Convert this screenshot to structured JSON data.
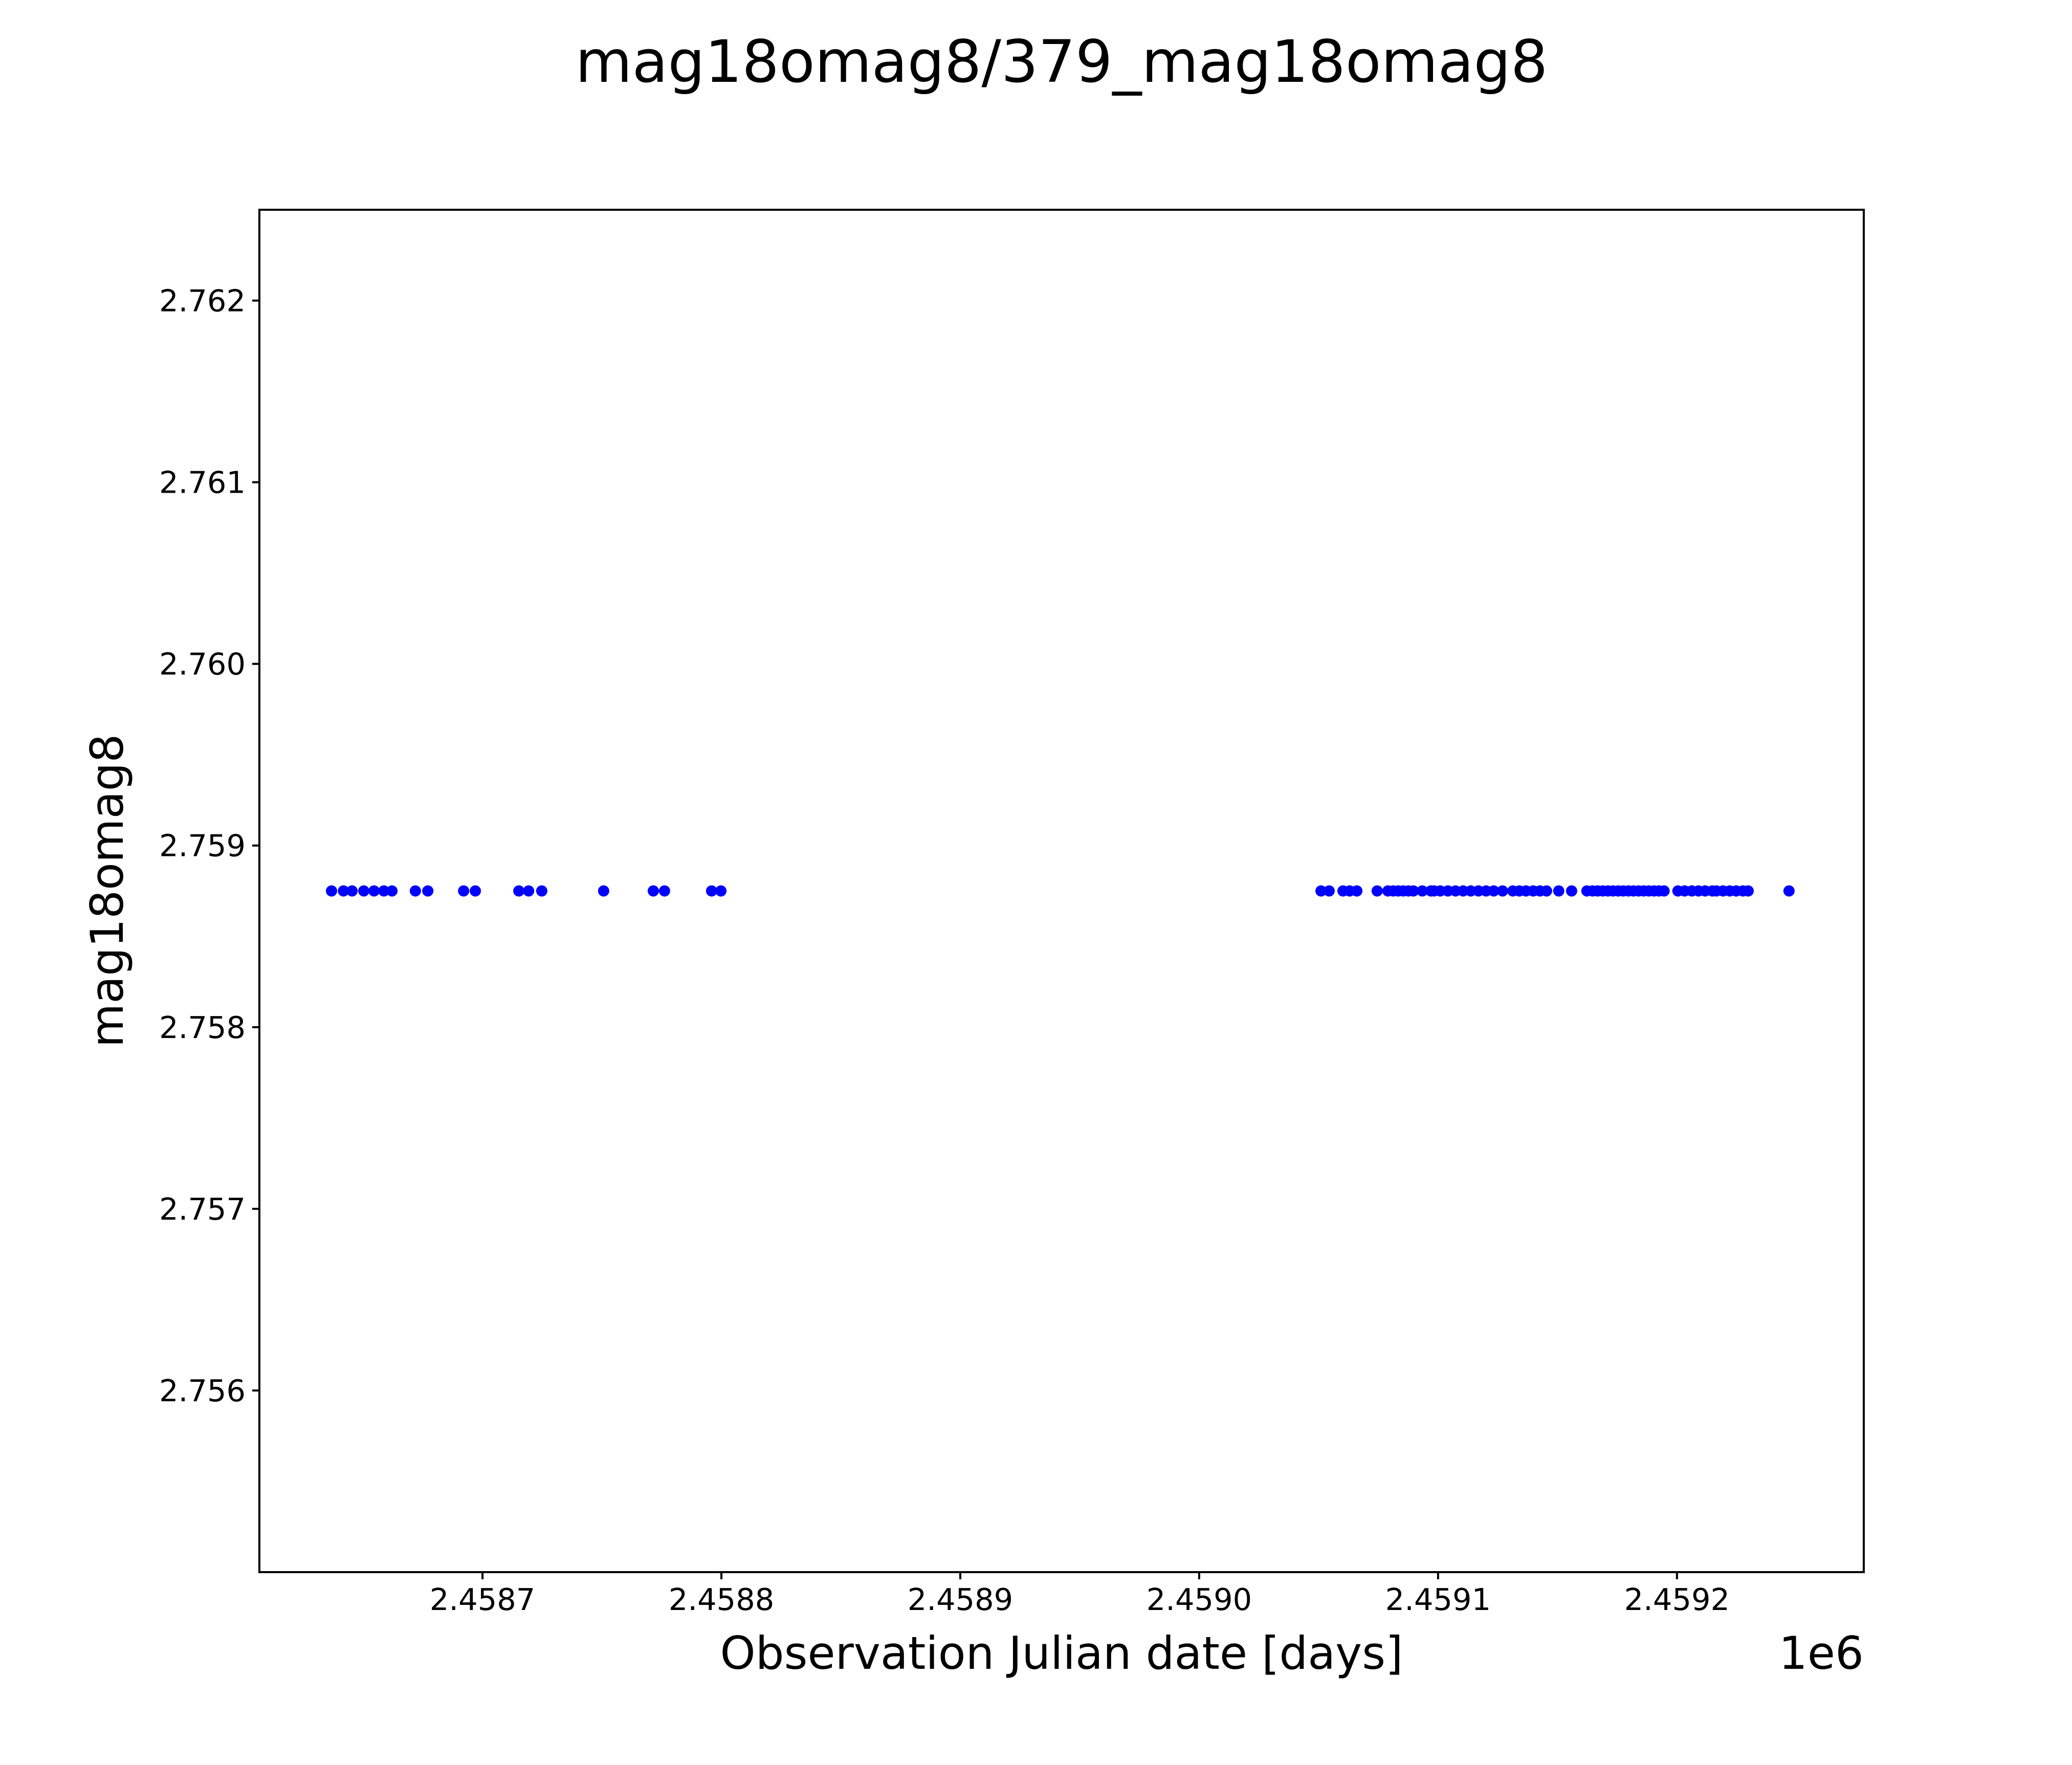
{
  "chart_data": {
    "type": "scatter",
    "title": "mag18omag8/379_mag18omag8",
    "xlabel": "Observation Julian date [days]",
    "ylabel": "mag18omag8",
    "x_offset_label": "1e6",
    "marker_color": "#0000FF",
    "marker_shape": "circle",
    "background_color": "#FFFFFF",
    "grid": false,
    "legend_position": "none",
    "xlim": [
      2458606.6,
      2459278.2
    ],
    "ylim": [
      2.755,
      2.7625
    ],
    "xticks": [
      {
        "value": 2458700,
        "label": "2.4587"
      },
      {
        "value": 2458800,
        "label": "2.4588"
      },
      {
        "value": 2458900,
        "label": "2.4589"
      },
      {
        "value": 2459000,
        "label": "2.4590"
      },
      {
        "value": 2459100,
        "label": "2.4591"
      },
      {
        "value": 2459200,
        "label": "2.4592"
      }
    ],
    "yticks": [
      {
        "value": 2.756,
        "label": "2.756"
      },
      {
        "value": 2.757,
        "label": "2.757"
      },
      {
        "value": 2.758,
        "label": "2.758"
      },
      {
        "value": 2.759,
        "label": "2.759"
      },
      {
        "value": 2.76,
        "label": "2.760"
      },
      {
        "value": 2.761,
        "label": "2.761"
      },
      {
        "value": 2.762,
        "label": "2.762"
      }
    ],
    "y_constant": 2.75875,
    "x": [
      2458636.8,
      2458641.8,
      2458645.4,
      2458650.3,
      2458654.6,
      2458658.7,
      2458662.1,
      2458671.9,
      2458677.1,
      2458692.1,
      2458697.0,
      2458715.2,
      2458719.3,
      2458724.8,
      2458750.7,
      2458771.5,
      2458776.2,
      2458795.9,
      2458799.8,
      2459051.0,
      2459054.4,
      2459060.2,
      2459063.0,
      2459066.0,
      2459074.5,
      2459079.0,
      2459081.2,
      2459083.3,
      2459085.4,
      2459087.6,
      2459089.7,
      2459093.4,
      2459097.0,
      2459098.3,
      2459100.9,
      2459104.1,
      2459107.3,
      2459110.5,
      2459113.7,
      2459116.9,
      2459120.1,
      2459123.3,
      2459127.0,
      2459131.3,
      2459134.0,
      2459136.8,
      2459139.8,
      2459142.6,
      2459145.4,
      2459150.5,
      2459155.9,
      2459162.3,
      2459164.7,
      2459166.8,
      2459169.0,
      2459171.1,
      2459173.2,
      2459175.4,
      2459177.5,
      2459179.7,
      2459181.8,
      2459184.0,
      2459186.1,
      2459188.2,
      2459190.4,
      2459192.5,
      2459194.6,
      2459200.4,
      2459203.2,
      2459206.2,
      2459209.0,
      2459211.8,
      2459214.8,
      2459216.5,
      2459219.3,
      2459222.1,
      2459224.8,
      2459227.6,
      2459229.8,
      2459246.9
    ]
  }
}
